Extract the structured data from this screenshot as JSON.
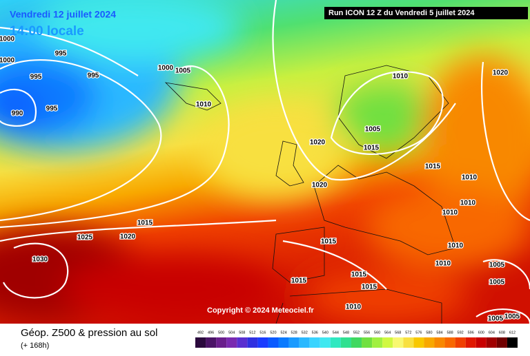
{
  "header": {
    "valid_date": "Vendredi 12 juillet 2024",
    "valid_time": "14:00 locale",
    "run": "Run ICON 12 Z du Vendredi 5 juillet 2024"
  },
  "copyright": "Copyright © 2024 Meteociel.fr",
  "footer": {
    "title": "Géop. Z500 & pression au sol",
    "lead": "(+ 168h)"
  },
  "legend": [
    {
      "value": 492,
      "color": "#2b0a3d"
    },
    {
      "value": 496,
      "color": "#4b1466"
    },
    {
      "value": 500,
      "color": "#6a1f8c"
    },
    {
      "value": 504,
      "color": "#7a2ab0"
    },
    {
      "value": 508,
      "color": "#5a2fd0"
    },
    {
      "value": 512,
      "color": "#3030e0"
    },
    {
      "value": 516,
      "color": "#1a3cff"
    },
    {
      "value": 520,
      "color": "#0a5aff"
    },
    {
      "value": 524,
      "color": "#0a7aff"
    },
    {
      "value": 528,
      "color": "#1a9aff"
    },
    {
      "value": 532,
      "color": "#2ab8ff"
    },
    {
      "value": 536,
      "color": "#3ad4ff"
    },
    {
      "value": 540,
      "color": "#40e8f0"
    },
    {
      "value": 544,
      "color": "#30e8c0"
    },
    {
      "value": 548,
      "color": "#30e090"
    },
    {
      "value": 552,
      "color": "#40d860"
    },
    {
      "value": 556,
      "color": "#70e040"
    },
    {
      "value": 560,
      "color": "#a0f040"
    },
    {
      "value": 564,
      "color": "#d0f840"
    },
    {
      "value": 568,
      "color": "#f8f870"
    },
    {
      "value": 572,
      "color": "#f8e040"
    },
    {
      "value": 576,
      "color": "#f8c800"
    },
    {
      "value": 580,
      "color": "#f8a800"
    },
    {
      "value": 584,
      "color": "#f88800"
    },
    {
      "value": 588,
      "color": "#f86800"
    },
    {
      "value": 592,
      "color": "#f04000"
    },
    {
      "value": 596,
      "color": "#e01800"
    },
    {
      "value": 600,
      "color": "#c80000"
    },
    {
      "value": 604,
      "color": "#a00000"
    },
    {
      "value": 608,
      "color": "#700000"
    },
    {
      "value": 612,
      "color": "#000000"
    }
  ],
  "isobar_labels": [
    1000,
    1000,
    995,
    995,
    995,
    995,
    990,
    1000,
    1005,
    1010,
    1010,
    1020,
    1005,
    1015,
    1020,
    1015,
    1010,
    1020,
    1010,
    1010,
    1015,
    1025,
    1020,
    1030,
    1015,
    1010,
    1010,
    1005,
    1015,
    1015,
    1015,
    1005,
    1010,
    1005,
    1005
  ]
}
